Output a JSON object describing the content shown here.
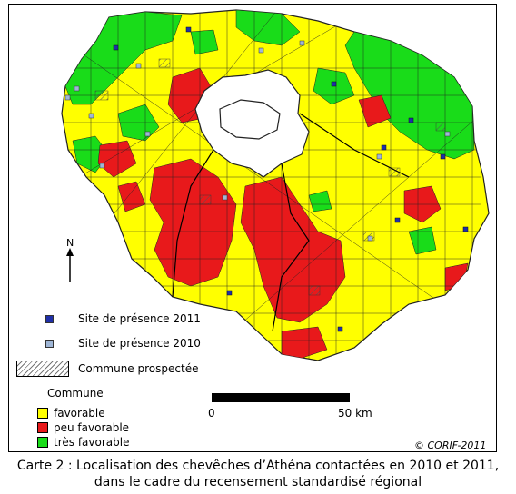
{
  "map": {
    "north_label": "N",
    "colors": {
      "favorable": "#ffff00",
      "peu_favorable": "#e8191b",
      "tres_favorable": "#19dc19",
      "paris_area": "#ffffff",
      "border": "#222222",
      "site_2011": "#1f2fa8",
      "site_2010": "#9fb6d6"
    }
  },
  "legend": {
    "site_2011": "Site de présence 2011",
    "site_2010": "Site de présence 2010",
    "prospected": "Commune prospectée",
    "commune_title": "Commune",
    "categories": [
      {
        "label": "favorable",
        "color": "#ffff00"
      },
      {
        "label": "peu favorable",
        "color": "#e8191b"
      },
      {
        "label": "très favorable",
        "color": "#19dc19"
      }
    ]
  },
  "scale": {
    "start": "0",
    "end": "50 km"
  },
  "credit": "© CORIF-2011",
  "caption": {
    "line1": "Carte 2 : Localisation des chevêches d’Athéna contactées en 2010 et 2011,",
    "line2": "dans le cadre du recensement standardisé régional"
  }
}
